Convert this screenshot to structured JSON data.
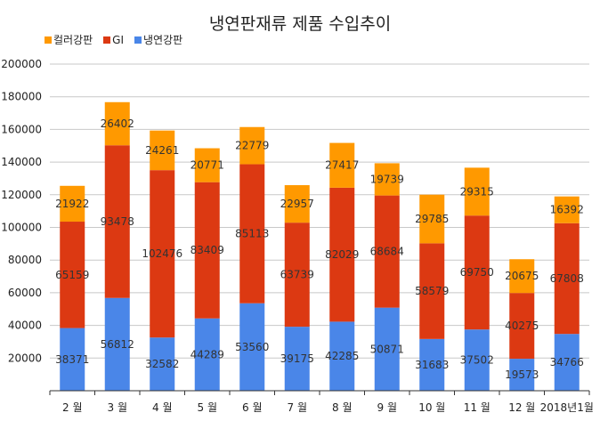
{
  "chart_data": {
    "type": "bar",
    "stacked": true,
    "title": "냉연판재류 제품 수입추이",
    "xlabel": "",
    "ylabel": "",
    "ylim": [
      0,
      200000
    ],
    "yticks": [
      20000,
      40000,
      60000,
      80000,
      100000,
      120000,
      140000,
      160000,
      180000,
      200000
    ],
    "grid": true,
    "legend_position": "top-left",
    "categories": [
      "2 월",
      "3 월",
      "4 월",
      "5 월",
      "6 월",
      "7 월",
      "8 월",
      "9 월",
      "10 월",
      "11 월",
      "12 월",
      "2018년1월"
    ],
    "series": [
      {
        "name": "냉연강판",
        "color": "#4a86e8",
        "values": [
          38371,
          56812,
          32582,
          44289,
          53560,
          39175,
          42285,
          50871,
          31683,
          37502,
          19573,
          34766
        ]
      },
      {
        "name": "GI",
        "color": "#dc3912",
        "values": [
          65159,
          93478,
          102476,
          83409,
          85113,
          63739,
          82029,
          68684,
          58579,
          69750,
          40275,
          67808
        ]
      },
      {
        "name": "컬러강판",
        "color": "#ff9900",
        "values": [
          21922,
          26402,
          24261,
          20771,
          22779,
          22957,
          27417,
          19739,
          29785,
          29315,
          20675,
          16392
        ]
      }
    ],
    "legend": [
      {
        "name": "컬러강판",
        "color": "#ff9900"
      },
      {
        "name": "GI",
        "color": "#dc3912"
      },
      {
        "name": "냉연강판",
        "color": "#4a86e8"
      }
    ]
  }
}
